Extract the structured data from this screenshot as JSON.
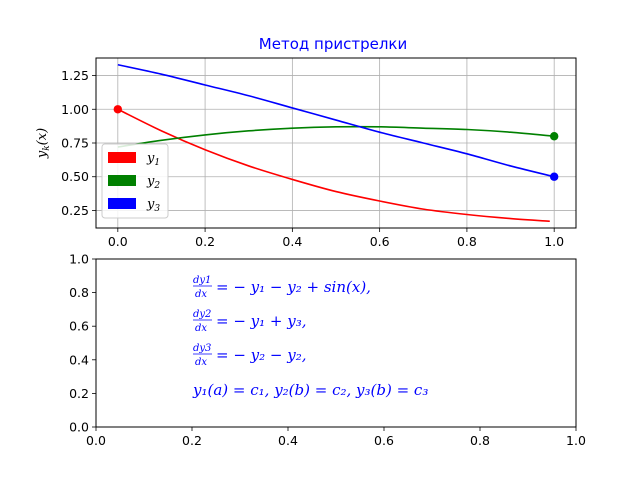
{
  "chart_data": [
    {
      "type": "line",
      "title": "Метод пристрелки",
      "ylabel": "y_k(x)",
      "xlim": [
        -0.05,
        1.05
      ],
      "ylim": [
        0.12,
        1.38
      ],
      "xticks": [
        "0.0",
        "0.2",
        "0.4",
        "0.6",
        "0.8",
        "1.0"
      ],
      "yticks": [
        "0.25",
        "0.50",
        "0.75",
        "1.00",
        "1.25"
      ],
      "grid": true,
      "legend_position": "lower-left",
      "series": [
        {
          "name": "y1",
          "color": "#ff0000",
          "x": [
            0,
            0.1,
            0.2,
            0.3,
            0.4,
            0.5,
            0.6,
            0.7,
            0.8,
            0.9,
            0.99
          ],
          "y": [
            1.0,
            0.84,
            0.7,
            0.58,
            0.48,
            0.39,
            0.32,
            0.26,
            0.22,
            0.19,
            0.17
          ],
          "marker": {
            "x": 0,
            "y": 1.0
          }
        },
        {
          "name": "y2",
          "color": "#008000",
          "x": [
            0,
            0.1,
            0.2,
            0.3,
            0.4,
            0.5,
            0.6,
            0.7,
            0.8,
            0.9,
            1.0
          ],
          "y": [
            0.72,
            0.77,
            0.81,
            0.84,
            0.86,
            0.87,
            0.87,
            0.86,
            0.85,
            0.83,
            0.8
          ],
          "marker": {
            "x": 1.0,
            "y": 0.8
          }
        },
        {
          "name": "y3",
          "color": "#0000ff",
          "x": [
            0,
            0.1,
            0.2,
            0.3,
            0.4,
            0.5,
            0.6,
            0.7,
            0.8,
            0.9,
            1.0
          ],
          "y": [
            1.33,
            1.26,
            1.18,
            1.1,
            1.01,
            0.92,
            0.83,
            0.75,
            0.67,
            0.58,
            0.5
          ],
          "marker": {
            "x": 1.0,
            "y": 0.5
          }
        }
      ]
    },
    {
      "type": "table",
      "xlim": [
        0,
        1
      ],
      "ylim": [
        0,
        1
      ],
      "xticks": [
        "0.0",
        "0.2",
        "0.4",
        "0.6",
        "0.8",
        "1.0"
      ],
      "yticks": [
        "0.0",
        "0.2",
        "0.4",
        "0.6",
        "0.8",
        "1.0"
      ],
      "equation_color": "#0000ff",
      "equations": {
        "eq1_num": "dy1",
        "eq1_den": "dx",
        "eq1_rhs": "= − y₁ − y₂ + sin(x),",
        "eq2_num": "dy2",
        "eq2_den": "dx",
        "eq2_rhs": "= − y₁ + y₃,",
        "eq3_num": "dy3",
        "eq3_den": "dx",
        "eq3_rhs": "= − y₂ − y₂,",
        "bc": "y₁(a) = c₁,    y₂(b) = c₂,    y₃(b) = c₃"
      }
    }
  ]
}
